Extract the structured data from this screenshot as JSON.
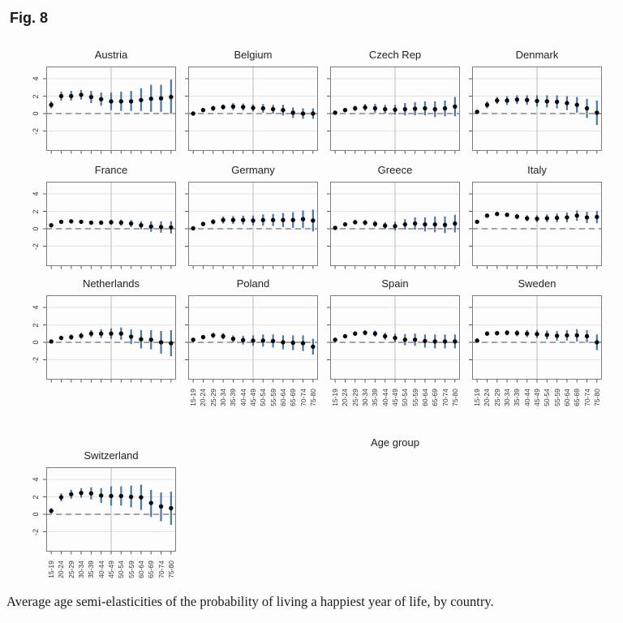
{
  "fig_label": "Fig. 8",
  "caption": "Average age semi-elasticities of the probability of living a happiest year of life, by country.",
  "colors": {
    "ci_bar": "#4878a8",
    "point": "#0b0b0b",
    "reference_line": "#4a4a4a",
    "gridline": "#dadada",
    "center_gridline": "#b3b3b3",
    "panel_border": "#7d7d7d"
  },
  "chart_data": {
    "type": "scatter",
    "subtype": "point-estimates-with-95ci-errorbars",
    "title": "Fig. 8",
    "xlabel": "Age group",
    "ylabel": "",
    "categories": [
      "15-19",
      "20-24",
      "25-29",
      "30-34",
      "35-39",
      "40-44",
      "45-49",
      "50-54",
      "55-59",
      "60-64",
      "65-69",
      "70-74",
      "75-80"
    ],
    "ylim": [
      -3,
      5
    ],
    "yticks": [
      -2,
      0,
      2,
      4
    ],
    "reference_line_y": 0,
    "grid": "light horizontal gridlines at yticks, vertical gridline at panel center, dashed line at y=0",
    "legend": "none",
    "layout": "4 columns x 3 rows plus one panel (Switzerland) in a fourth row, first column",
    "panels": [
      {
        "country": "Austria",
        "estimates": [
          1.0,
          2.0,
          2.0,
          2.15,
          1.9,
          1.65,
          1.4,
          1.4,
          1.4,
          1.55,
          1.7,
          1.75,
          1.9
        ],
        "ci_low": [
          0.6,
          1.5,
          1.5,
          1.6,
          1.2,
          0.9,
          0.4,
          0.3,
          0.3,
          0.3,
          0.2,
          0.2,
          0.0
        ],
        "ci_high": [
          1.4,
          2.5,
          2.6,
          2.7,
          2.6,
          2.4,
          2.4,
          2.5,
          2.6,
          2.9,
          3.3,
          3.3,
          3.9
        ]
      },
      {
        "country": "Belgium",
        "estimates": [
          0.0,
          0.4,
          0.6,
          0.75,
          0.8,
          0.75,
          0.65,
          0.6,
          0.5,
          0.4,
          0.1,
          0.0,
          0.0
        ],
        "ci_low": [
          -0.2,
          0.2,
          0.3,
          0.45,
          0.4,
          0.35,
          0.25,
          0.1,
          0.0,
          -0.2,
          -0.5,
          -0.6,
          -0.6
        ],
        "ci_high": [
          0.2,
          0.6,
          0.9,
          1.05,
          1.2,
          1.15,
          1.05,
          1.1,
          1.0,
          1.0,
          0.7,
          0.6,
          0.6
        ]
      },
      {
        "country": "Czech Rep",
        "estimates": [
          0.1,
          0.4,
          0.6,
          0.7,
          0.6,
          0.5,
          0.45,
          0.5,
          0.55,
          0.6,
          0.5,
          0.6,
          0.8
        ],
        "ci_low": [
          -0.1,
          0.2,
          0.3,
          0.3,
          0.1,
          0.0,
          -0.1,
          -0.2,
          -0.2,
          -0.2,
          -0.4,
          -0.3,
          -0.3
        ],
        "ci_high": [
          0.3,
          0.6,
          0.9,
          1.1,
          1.1,
          1.0,
          1.0,
          1.2,
          1.3,
          1.4,
          1.4,
          1.5,
          1.9
        ]
      },
      {
        "country": "Denmark",
        "estimates": [
          0.2,
          1.0,
          1.5,
          1.5,
          1.6,
          1.55,
          1.45,
          1.4,
          1.35,
          1.2,
          1.0,
          0.6,
          0.1
        ],
        "ci_low": [
          0.0,
          0.6,
          1.1,
          1.0,
          1.1,
          1.0,
          0.8,
          0.7,
          0.6,
          0.4,
          0.1,
          -0.5,
          -1.3
        ],
        "ci_high": [
          0.4,
          1.4,
          1.9,
          2.0,
          2.1,
          2.1,
          2.1,
          2.1,
          2.1,
          2.0,
          1.9,
          1.7,
          1.5
        ]
      },
      {
        "country": "France",
        "estimates": [
          0.4,
          0.8,
          0.85,
          0.8,
          0.7,
          0.7,
          0.75,
          0.7,
          0.6,
          0.4,
          0.25,
          0.2,
          0.15
        ],
        "ci_low": [
          0.2,
          0.6,
          0.65,
          0.6,
          0.5,
          0.45,
          0.45,
          0.35,
          0.2,
          -0.05,
          -0.35,
          -0.45,
          -0.55
        ],
        "ci_high": [
          0.6,
          1.0,
          1.05,
          1.0,
          0.9,
          0.95,
          1.05,
          1.05,
          1.0,
          0.85,
          0.85,
          0.85,
          0.85
        ]
      },
      {
        "country": "Germany",
        "estimates": [
          0.05,
          0.55,
          0.8,
          1.0,
          1.0,
          1.0,
          0.95,
          1.0,
          1.0,
          1.0,
          1.0,
          1.1,
          0.95
        ],
        "ci_low": [
          -0.15,
          0.3,
          0.5,
          0.6,
          0.55,
          0.5,
          0.4,
          0.35,
          0.3,
          0.2,
          0.1,
          0.1,
          -0.3
        ],
        "ci_high": [
          0.25,
          0.8,
          1.1,
          1.4,
          1.45,
          1.5,
          1.5,
          1.65,
          1.7,
          1.8,
          1.9,
          2.1,
          2.2
        ]
      },
      {
        "country": "Greece",
        "estimates": [
          0.1,
          0.5,
          0.75,
          0.7,
          0.55,
          0.35,
          0.3,
          0.5,
          0.6,
          0.5,
          0.5,
          0.45,
          0.6
        ],
        "ci_low": [
          -0.1,
          0.3,
          0.5,
          0.4,
          0.2,
          -0.05,
          -0.2,
          -0.1,
          -0.1,
          -0.3,
          -0.4,
          -0.5,
          -0.4
        ],
        "ci_high": [
          0.3,
          0.7,
          1.0,
          1.0,
          0.9,
          0.75,
          0.8,
          1.1,
          1.3,
          1.3,
          1.4,
          1.4,
          1.6
        ]
      },
      {
        "country": "Italy",
        "estimates": [
          0.8,
          1.5,
          1.7,
          1.6,
          1.4,
          1.2,
          1.15,
          1.2,
          1.25,
          1.3,
          1.5,
          1.3,
          1.35
        ],
        "ci_low": [
          0.6,
          1.3,
          1.5,
          1.35,
          1.1,
          0.85,
          0.75,
          0.75,
          0.75,
          0.75,
          0.9,
          0.65,
          0.65
        ],
        "ci_high": [
          1.0,
          1.7,
          1.9,
          1.85,
          1.7,
          1.55,
          1.55,
          1.65,
          1.75,
          1.85,
          2.1,
          1.95,
          2.05
        ]
      },
      {
        "country": "Netherlands",
        "estimates": [
          0.1,
          0.5,
          0.6,
          0.75,
          1.0,
          1.0,
          1.0,
          1.0,
          0.65,
          0.35,
          0.3,
          0.0,
          -0.1
        ],
        "ci_low": [
          -0.1,
          0.3,
          0.3,
          0.4,
          0.6,
          0.5,
          0.4,
          0.3,
          -0.2,
          -0.7,
          -0.8,
          -1.3,
          -1.6
        ],
        "ci_high": [
          0.3,
          0.7,
          0.9,
          1.1,
          1.4,
          1.5,
          1.6,
          1.7,
          1.5,
          1.4,
          1.4,
          1.3,
          1.4
        ]
      },
      {
        "country": "Poland",
        "estimates": [
          0.3,
          0.6,
          0.8,
          0.7,
          0.4,
          0.25,
          0.2,
          0.2,
          0.15,
          0.0,
          -0.05,
          -0.1,
          -0.5
        ],
        "ci_low": [
          0.1,
          0.35,
          0.5,
          0.35,
          0.0,
          -0.25,
          -0.4,
          -0.5,
          -0.6,
          -0.8,
          -0.9,
          -1.0,
          -1.4
        ],
        "ci_high": [
          0.5,
          0.85,
          1.1,
          1.05,
          0.8,
          0.75,
          0.8,
          0.9,
          0.9,
          0.8,
          0.8,
          0.8,
          0.4
        ]
      },
      {
        "country": "Spain",
        "estimates": [
          0.3,
          0.7,
          1.0,
          1.1,
          1.0,
          0.7,
          0.5,
          0.3,
          0.3,
          0.15,
          0.1,
          0.1,
          0.1
        ],
        "ci_low": [
          0.1,
          0.5,
          0.75,
          0.8,
          0.65,
          0.3,
          0.0,
          -0.35,
          -0.4,
          -0.6,
          -0.7,
          -0.7,
          -0.7
        ],
        "ci_high": [
          0.5,
          0.9,
          1.25,
          1.4,
          1.35,
          1.1,
          1.0,
          0.95,
          1.0,
          0.9,
          0.9,
          0.9,
          0.9
        ]
      },
      {
        "country": "Sweden",
        "estimates": [
          0.2,
          1.0,
          1.05,
          1.1,
          1.05,
          1.0,
          0.95,
          0.85,
          0.75,
          0.8,
          0.8,
          0.7,
          0.0
        ],
        "ci_low": [
          0.0,
          0.75,
          0.8,
          0.8,
          0.7,
          0.6,
          0.5,
          0.35,
          0.2,
          0.2,
          0.1,
          0.0,
          -0.9
        ],
        "ci_high": [
          0.4,
          1.25,
          1.3,
          1.4,
          1.4,
          1.4,
          1.4,
          1.35,
          1.3,
          1.4,
          1.5,
          1.4,
          0.9
        ]
      },
      {
        "country": "Switzerland",
        "estimates": [
          0.4,
          1.95,
          2.3,
          2.45,
          2.4,
          2.15,
          2.1,
          2.1,
          2.0,
          1.95,
          1.3,
          0.9,
          0.7
        ],
        "ci_low": [
          0.1,
          1.5,
          1.8,
          1.9,
          1.7,
          1.3,
          1.0,
          1.0,
          0.8,
          0.5,
          -0.3,
          -0.8,
          -1.2
        ],
        "ci_high": [
          0.7,
          2.4,
          2.8,
          3.0,
          3.1,
          3.0,
          3.2,
          3.2,
          3.3,
          3.4,
          2.8,
          2.5,
          2.6
        ]
      }
    ]
  }
}
